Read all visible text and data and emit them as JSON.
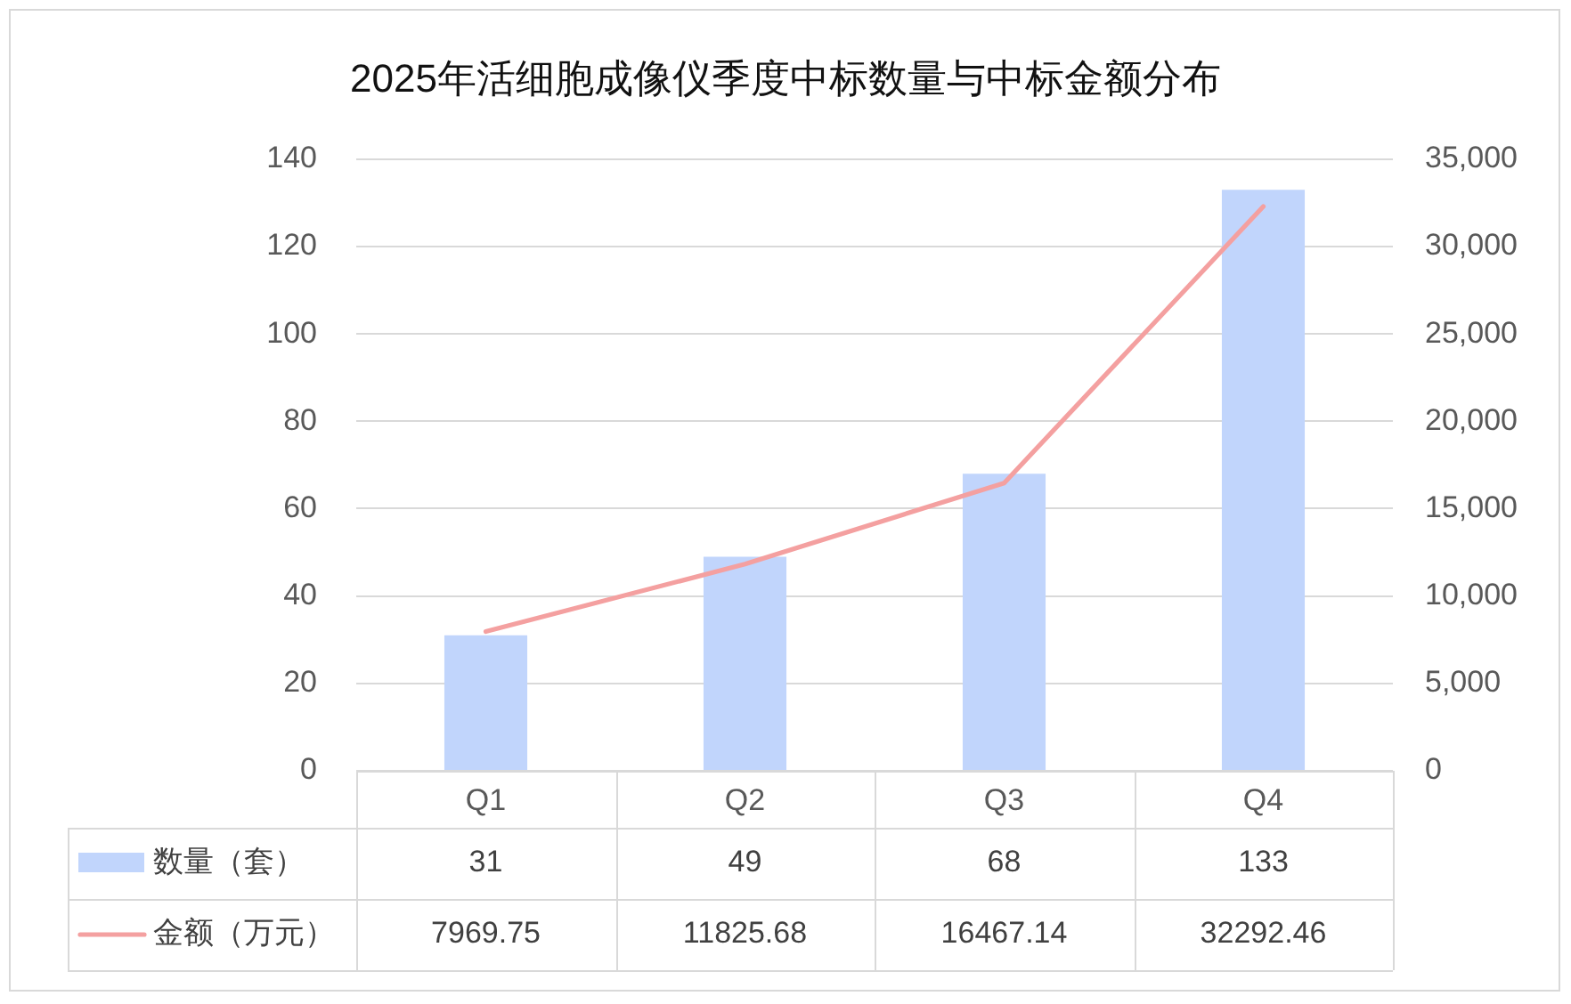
{
  "chart_data": {
    "type": "bar",
    "title": "2025年活细胞成像仪季度中标数量与中标金额分布",
    "categories": [
      "Q1",
      "Q2",
      "Q3",
      "Q4"
    ],
    "series": [
      {
        "name": "数量（套）",
        "color": "#c1d5fc",
        "values": [
          31,
          49,
          68,
          133
        ]
      },
      {
        "name": "金额（万元）",
        "type": "line",
        "axis": "y2",
        "color": "#f4a0a0",
        "values": [
          7969.75,
          11825.68,
          16467.14,
          32292.46
        ]
      }
    ],
    "ylim": [
      0,
      140
    ],
    "yticks": [
      0,
      20,
      40,
      60,
      80,
      100,
      120,
      140
    ],
    "y2lim": [
      0,
      35000
    ],
    "y2ticks": [
      0,
      {
        "value": 5000,
        "label": "5,000"
      },
      {
        "value": 10000,
        "label": "10,000"
      },
      {
        "value": 15000,
        "label": "15,000"
      },
      {
        "value": 20000,
        "label": "20,000"
      },
      {
        "value": 25000,
        "label": "25,000"
      },
      {
        "value": 30000,
        "label": "30,000"
      },
      {
        "value": 35000,
        "label": "35,000"
      }
    ],
    "grid": "y",
    "legend": "bottom left",
    "data_labels": true,
    "marker": "none",
    "line_style": "solid"
  }
}
